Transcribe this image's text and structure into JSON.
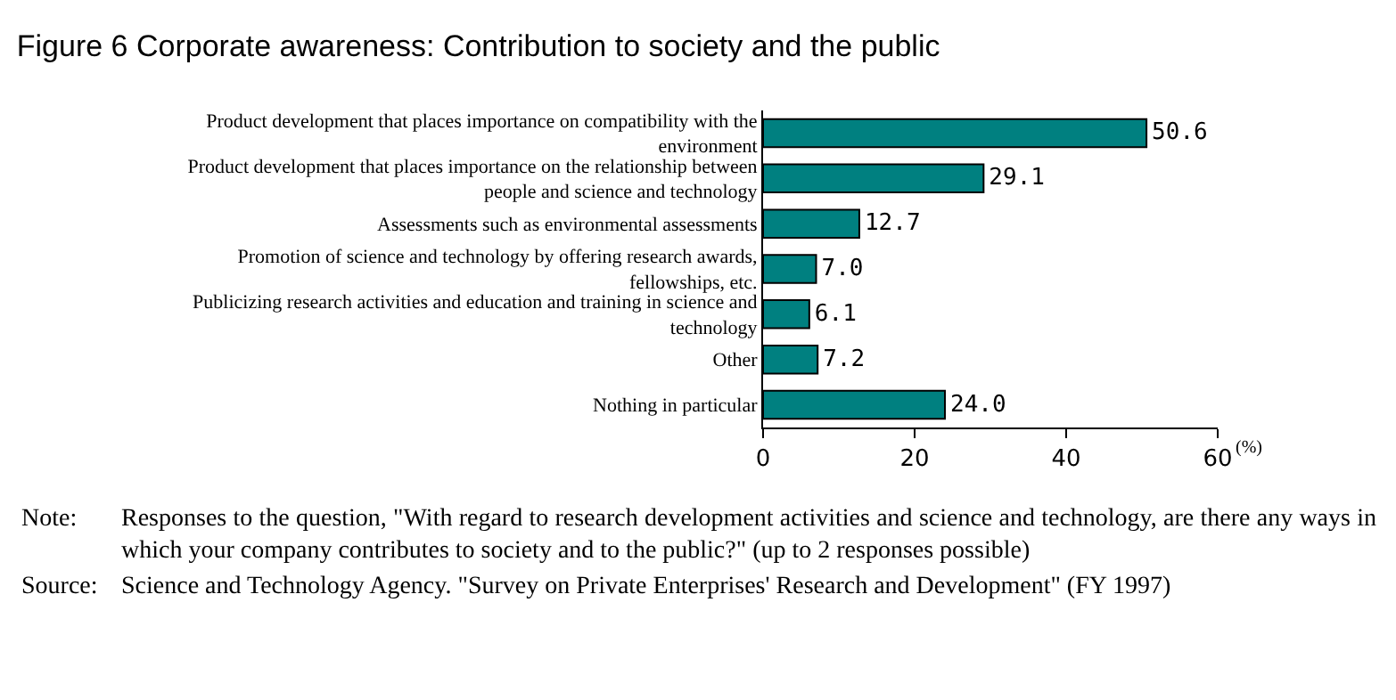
{
  "chart_data": {
    "type": "bar",
    "orientation": "horizontal",
    "title": "Figure 6 Corporate awareness: Contribution to society and the public",
    "categories": [
      "Product development that places importance on compatibility with the environment",
      "Product development that places importance on the relationship between people and science and technology",
      "Assessments such as environmental assessments",
      "Promotion of science and technology by offering research awards, fellowships, etc.",
      "Publicizing research activities and education and training in science and technology",
      "Other",
      "Nothing in particular"
    ],
    "values": [
      50.6,
      29.1,
      12.7,
      7.0,
      6.1,
      7.2,
      24.0
    ],
    "value_labels": [
      "50.6",
      "29.1",
      "12.7",
      "7.0",
      "6.1",
      "7.2",
      "24.0"
    ],
    "color": "#008080",
    "xlabel": "(%)",
    "xlim": [
      0,
      60
    ],
    "xticks": [
      0,
      20,
      40,
      60
    ],
    "grid": false,
    "annotations": [
      "Note: Responses to the question, \"With regard to research development activities and science and technology, are there any ways in which your company contributes to society and to the public?\" (up to 2 responses possible)",
      "Source: Science and Technology Agency. \"Survey on Private Enterprises' Research and Development\" (FY 1997)"
    ]
  }
}
